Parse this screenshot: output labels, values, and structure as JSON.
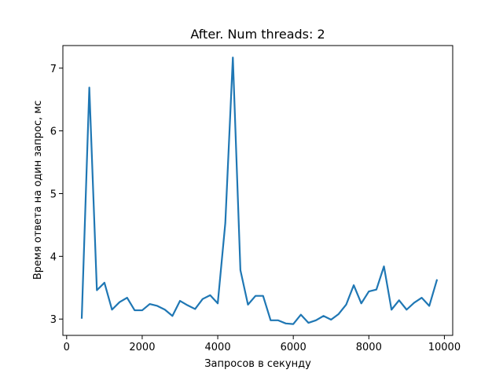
{
  "chart_data": {
    "type": "line",
    "title": "After. Num threads: 2",
    "xlabel": "Запросов в секунду",
    "ylabel": "Время ответа на один запрос, мс",
    "xlim": [
      -100,
      10220
    ],
    "ylim": [
      2.74,
      7.36
    ],
    "xticks": [
      0,
      2000,
      4000,
      6000,
      8000,
      10000
    ],
    "yticks": [
      3,
      4,
      5,
      6,
      7
    ],
    "grid": false,
    "line_color": "#1f77b4",
    "series": [
      {
        "x": [
          400,
          600,
          800,
          1000,
          1200,
          1400,
          1600,
          1800,
          2000,
          2200,
          2400,
          2600,
          2800,
          3000,
          3200,
          3400,
          3600,
          3800,
          4000,
          4200,
          4400,
          4600,
          4800,
          5000,
          5200,
          5400,
          5600,
          5800,
          6000,
          6200,
          6400,
          6600,
          6800,
          7000,
          7200,
          7400,
          7600,
          7800,
          8000,
          8200,
          8400,
          8600,
          8800,
          9000,
          9200,
          9400,
          9600,
          9800
        ],
        "y": [
          3.02,
          6.69,
          3.46,
          3.58,
          3.15,
          3.27,
          3.34,
          3.14,
          3.14,
          3.24,
          3.21,
          3.15,
          3.05,
          3.29,
          3.22,
          3.16,
          3.32,
          3.38,
          3.25,
          4.53,
          7.17,
          3.78,
          3.23,
          3.37,
          3.37,
          2.98,
          2.98,
          2.93,
          2.92,
          3.07,
          2.94,
          2.98,
          3.05,
          2.99,
          3.08,
          3.23,
          3.54,
          3.25,
          3.44,
          3.47,
          3.84,
          3.15,
          3.3,
          3.15,
          3.26,
          3.34,
          3.21,
          3.62
        ]
      }
    ]
  }
}
